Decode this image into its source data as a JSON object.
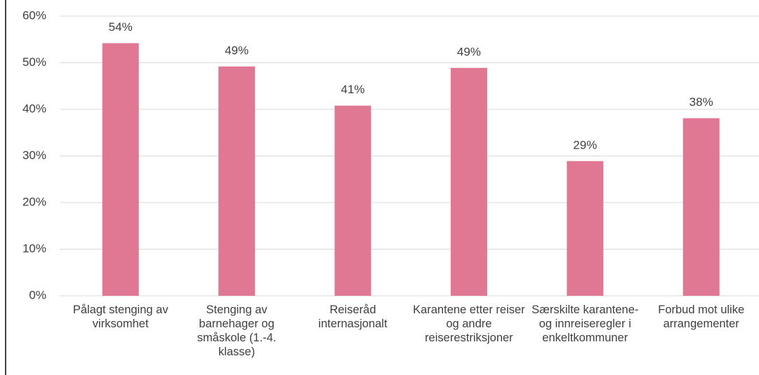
{
  "chart_data": {
    "type": "bar",
    "categories": [
      "Pålagt stenging av virksomhet",
      "Stenging av barnehager og småskole (1.-4. klasse)",
      "Reiseråd internasjonalt",
      "Karantene etter reiser og andre reiserestriksjoner",
      "Særskilte karantene- og innreiseregler i enkeltkommuner",
      "Forbud mot ulike arrangementer"
    ],
    "values": [
      54.2,
      49.2,
      40.8,
      48.9,
      28.9,
      38.1
    ],
    "value_labels": [
      "54%",
      "49%",
      "41%",
      "49%",
      "29%",
      "38%"
    ],
    "color": "#e07793",
    "ylim": [
      0,
      60
    ],
    "yticks": [
      {
        "value": 0,
        "label": "0%"
      },
      {
        "value": 10,
        "label": "10%"
      },
      {
        "value": 20,
        "label": "20%"
      },
      {
        "value": 30,
        "label": "30%"
      },
      {
        "value": 40,
        "label": "40%"
      },
      {
        "value": 50,
        "label": "50%"
      },
      {
        "value": 60,
        "label": "60%"
      }
    ],
    "grid": true
  }
}
